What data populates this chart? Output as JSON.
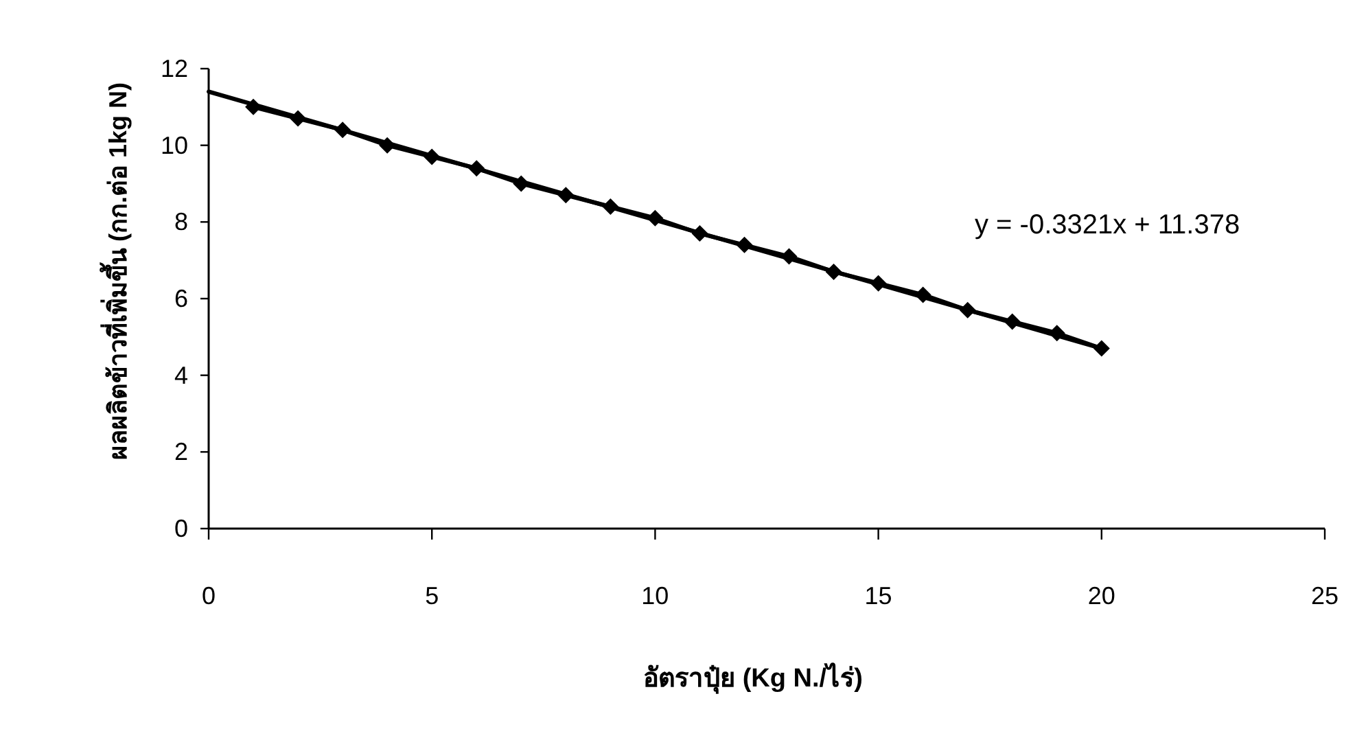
{
  "chart_data": {
    "type": "line",
    "xlabel": "อัตราปุ๋ย (Kg N./ไร่)",
    "ylabel": "ผลผลิตข้าวที่เพิ่มขึ้น (กก.ต่อ 1kg N)",
    "xlim": [
      0,
      25
    ],
    "ylim": [
      0,
      12
    ],
    "xticks": [
      0,
      5,
      10,
      15,
      20,
      25
    ],
    "yticks": [
      0,
      2,
      4,
      6,
      8,
      10,
      12
    ],
    "grid": false,
    "annotations": [
      "y = -0.3321x + 11.378"
    ],
    "series": [
      {
        "color": "#000000",
        "marker": "diamond",
        "line_style": "solid",
        "x": [
          1,
          2,
          3,
          4,
          5,
          6,
          7,
          8,
          9,
          10,
          11,
          12,
          13,
          14,
          15,
          16,
          17,
          18,
          19,
          20
        ],
        "values": [
          11.0,
          10.7,
          10.4,
          10.0,
          9.7,
          9.4,
          9.0,
          8.7,
          8.4,
          8.1,
          7.7,
          7.4,
          7.1,
          6.7,
          6.4,
          6.1,
          5.7,
          5.4,
          5.1,
          4.7
        ]
      },
      {
        "color": "#000000",
        "marker": "none",
        "line_style": "solid",
        "x": [
          0,
          20
        ],
        "values": [
          11.4,
          4.7
        ]
      }
    ]
  }
}
